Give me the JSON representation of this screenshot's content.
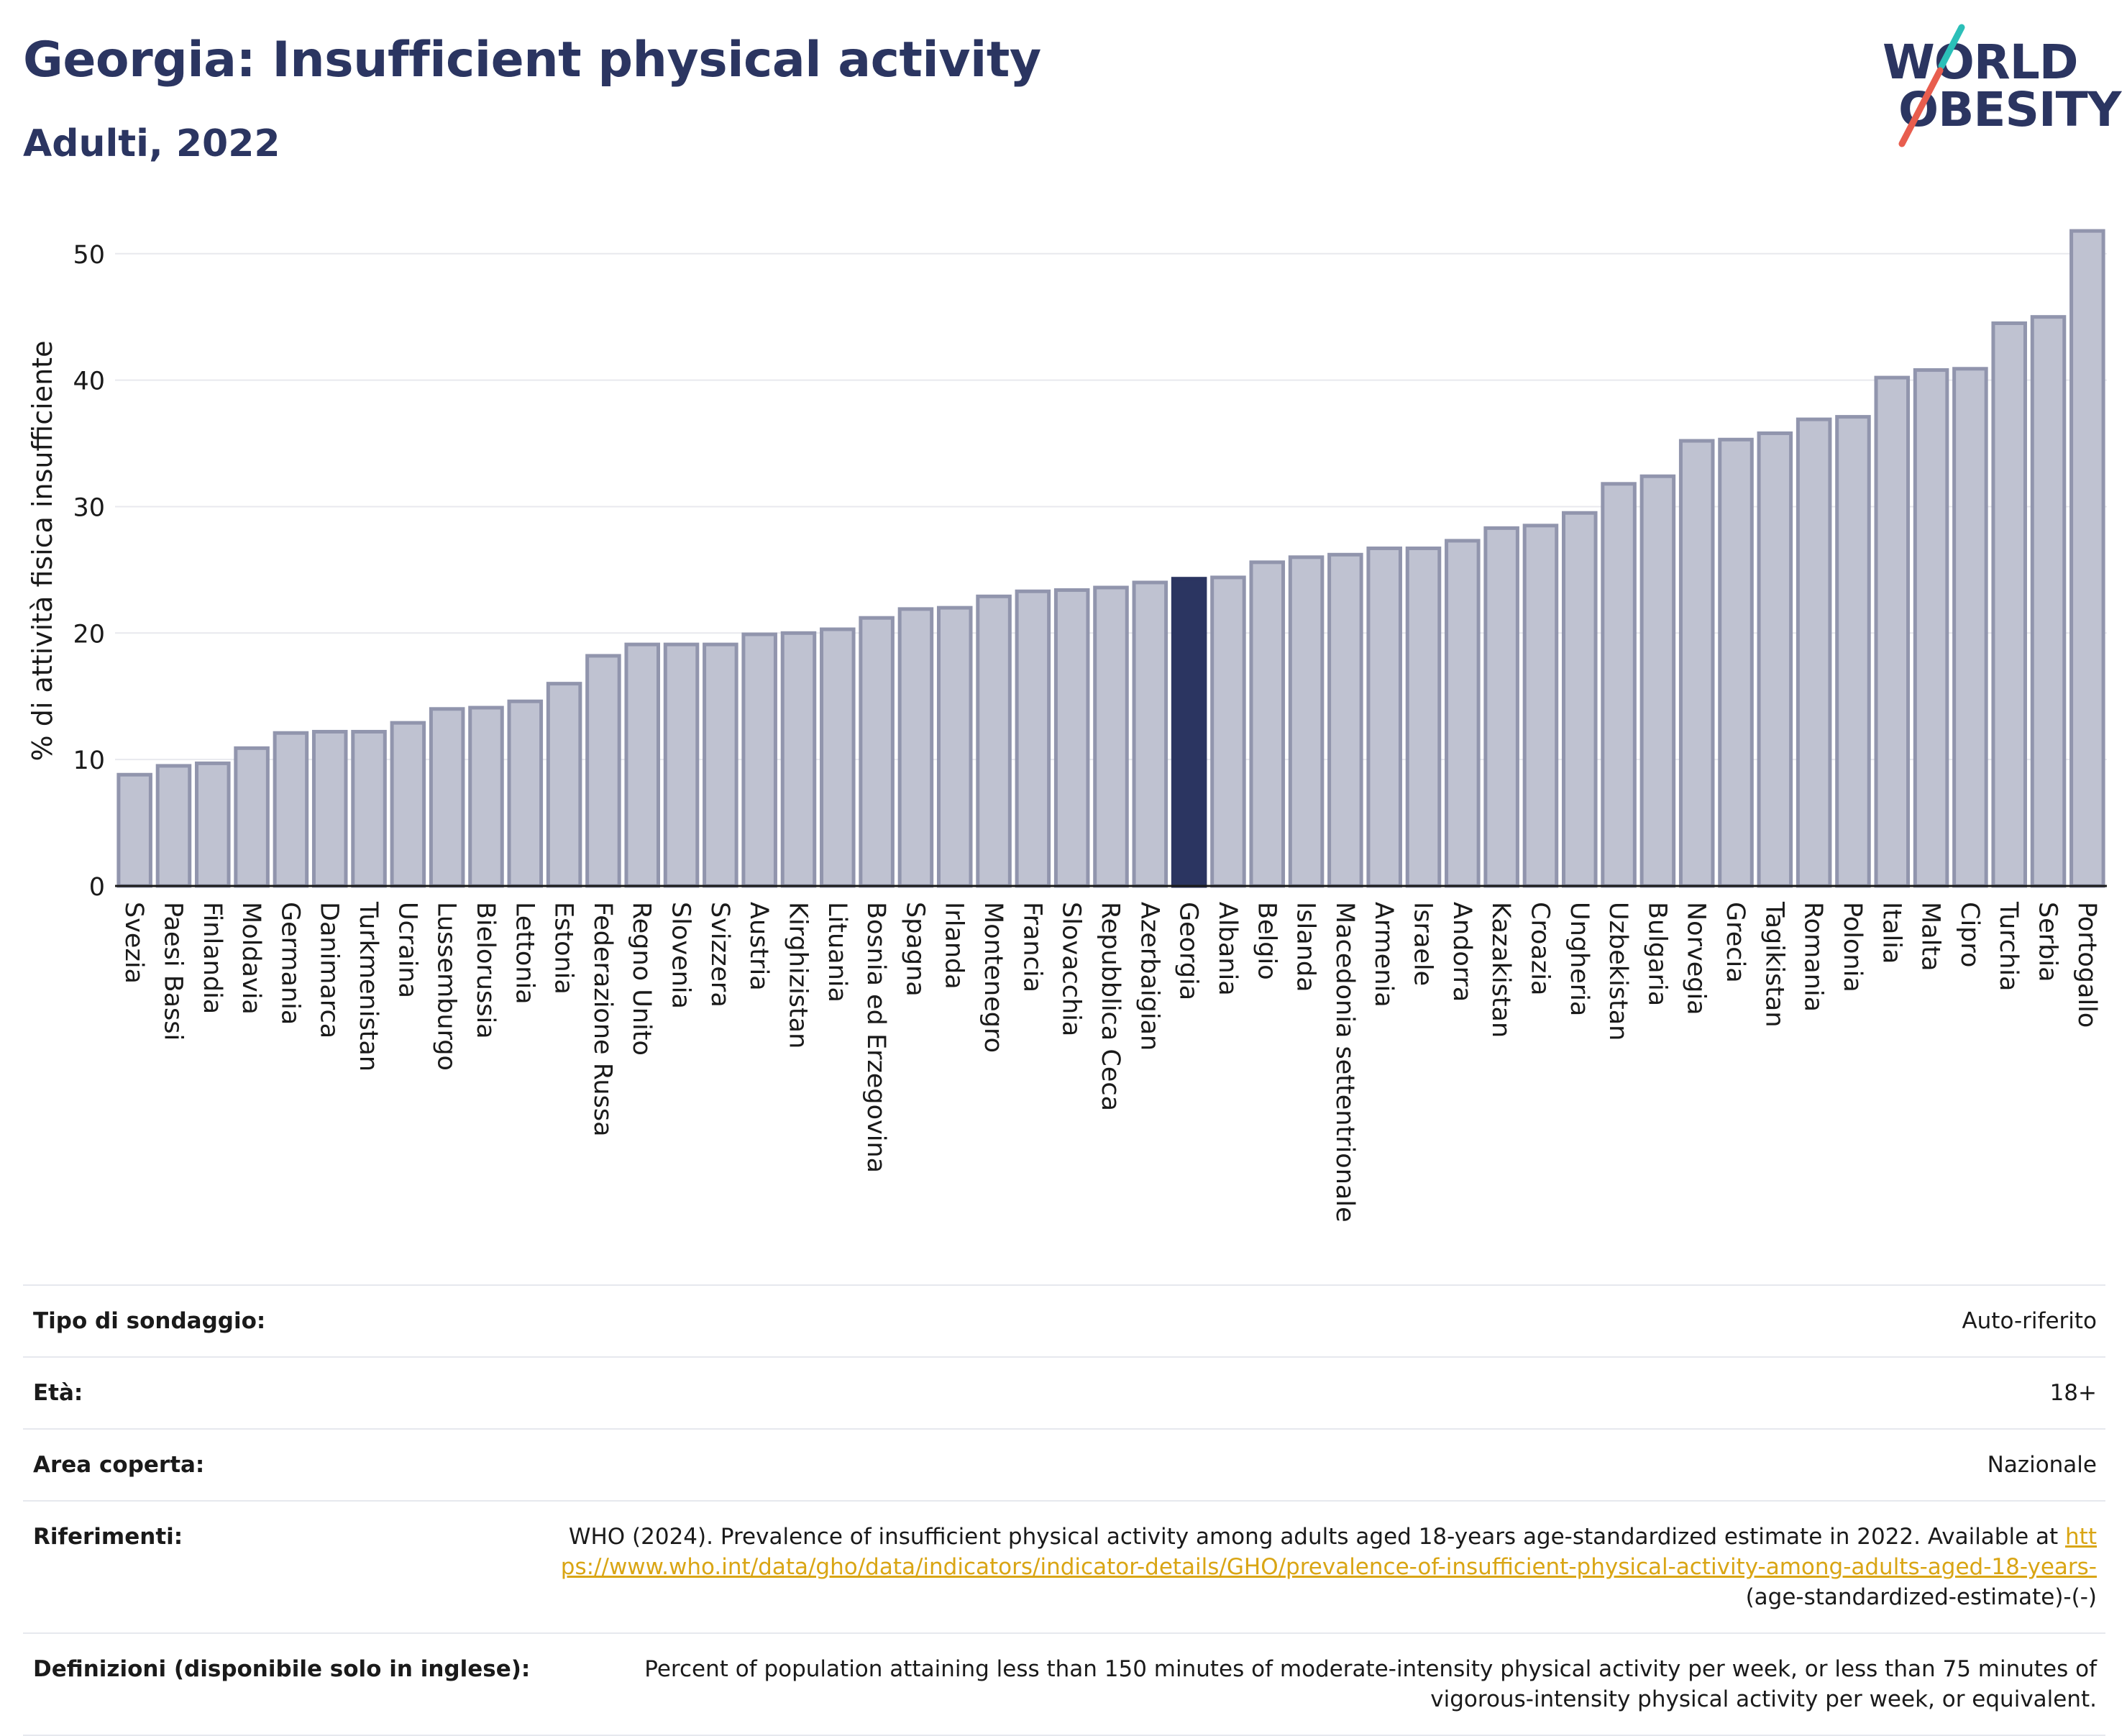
{
  "header": {
    "title": "Georgia: Insufficient physical activity",
    "subtitle": "Adulti, 2022"
  },
  "logo": {
    "line1": "WORLD",
    "line2": "OBESITY"
  },
  "colors": {
    "highlight": "#2b3561",
    "bar_fill": "#bfc2d1",
    "bar_stroke": "#9195ad",
    "logo_slash_top": "#2bbfb8",
    "logo_slash_bottom": "#e85d4e",
    "link": "#d9a514"
  },
  "chart_data": {
    "type": "bar",
    "ylabel": "% di attività fisica insufficiente",
    "ylim": [
      0,
      53
    ],
    "yticks": [
      0,
      10,
      20,
      30,
      40,
      50
    ],
    "grid": true,
    "highlight": "Georgia",
    "categories": [
      "Svezia",
      "Paesi Bassi",
      "Finlandia",
      "Moldavia",
      "Germania",
      "Danimarca",
      "Turkmenistan",
      "Ucraina",
      "Lussemburgo",
      "Bielorussia",
      "Lettonia",
      "Estonia",
      "Federazione Russa",
      "Regno Unito",
      "Slovenia",
      "Svizzera",
      "Austria",
      "Kirghizistan",
      "Lituania",
      "Bosnia ed Erzegovina",
      "Spagna",
      "Irlanda",
      "Montenegro",
      "Francia",
      "Slovacchia",
      "Repubblica Ceca",
      "Azerbaigian",
      "Georgia",
      "Albania",
      "Belgio",
      "Islanda",
      "Macedonia settentrionale",
      "Armenia",
      "Israele",
      "Andorra",
      "Kazakistan",
      "Croazia",
      "Ungheria",
      "Uzbekistan",
      "Bulgaria",
      "Norvegia",
      "Grecia",
      "Tagikistan",
      "Romania",
      "Polonia",
      "Italia",
      "Malta",
      "Cipro",
      "Turchia",
      "Serbia",
      "Portogallo"
    ],
    "values": [
      8.8,
      9.5,
      9.7,
      10.9,
      12.1,
      12.2,
      12.2,
      12.9,
      14.0,
      14.1,
      14.6,
      16.0,
      18.2,
      19.1,
      19.1,
      19.1,
      19.9,
      20.0,
      20.3,
      21.2,
      21.9,
      22.0,
      22.9,
      23.3,
      23.4,
      23.6,
      24.0,
      24.3,
      24.4,
      25.6,
      26.0,
      26.2,
      26.7,
      26.7,
      27.3,
      28.3,
      28.5,
      29.5,
      31.8,
      32.4,
      35.2,
      35.3,
      35.8,
      36.9,
      37.1,
      40.2,
      40.8,
      40.9,
      44.5,
      45.0,
      51.8
    ]
  },
  "meta": [
    {
      "label": "Tipo di sondaggio:",
      "value": "Auto-riferito"
    },
    {
      "label": "Età:",
      "value": "18+"
    },
    {
      "label": "Area coperta:",
      "value": "Nazionale"
    },
    {
      "label": "Riferimenti:",
      "value": "WHO (2024). Prevalence of insufficient physical activity among adults aged 18-years age-standardized estimate in 2022. Available at",
      "link": "https://www.who.int/data/gho/data/indicators/indicator-details/GHO/prevalence-of-insufficient-physical-activity-among-adults-aged-18-years-",
      "suffix": "(age-standardized-estimate)-(-)"
    },
    {
      "label": "Definizioni (disponibile solo in inglese):",
      "value": "Percent of population attaining less than 150 minutes of moderate-intensity physical activity per week, or less than 75 minutes of vigorous-intensity physical activity per week, or equivalent."
    }
  ]
}
